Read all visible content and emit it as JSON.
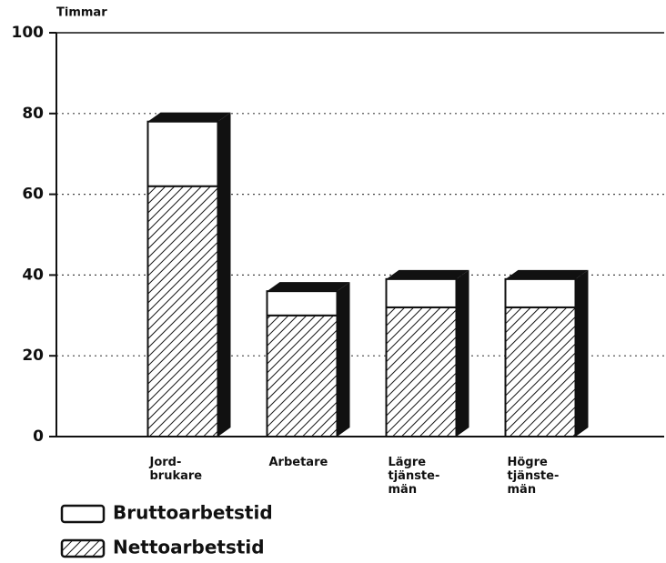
{
  "chart_data": {
    "type": "bar",
    "stacked": true,
    "y_label": "Timmar",
    "categories": [
      "Jord-\nbrukare",
      "Arbetare",
      "Lägre\ntjänste-\nmän",
      "Högre\ntjänste-\nmän"
    ],
    "series": [
      {
        "name": "Nettoarbetstid",
        "color": "hatch",
        "values": [
          62,
          30,
          32,
          32
        ]
      },
      {
        "name": "Bruttoarbetstid",
        "color": "#ffffff",
        "values": [
          16,
          6,
          7,
          7
        ]
      }
    ],
    "ylim": [
      0,
      100
    ],
    "yticks": [
      0,
      20,
      40,
      60,
      80,
      100
    ],
    "grid": true
  }
}
